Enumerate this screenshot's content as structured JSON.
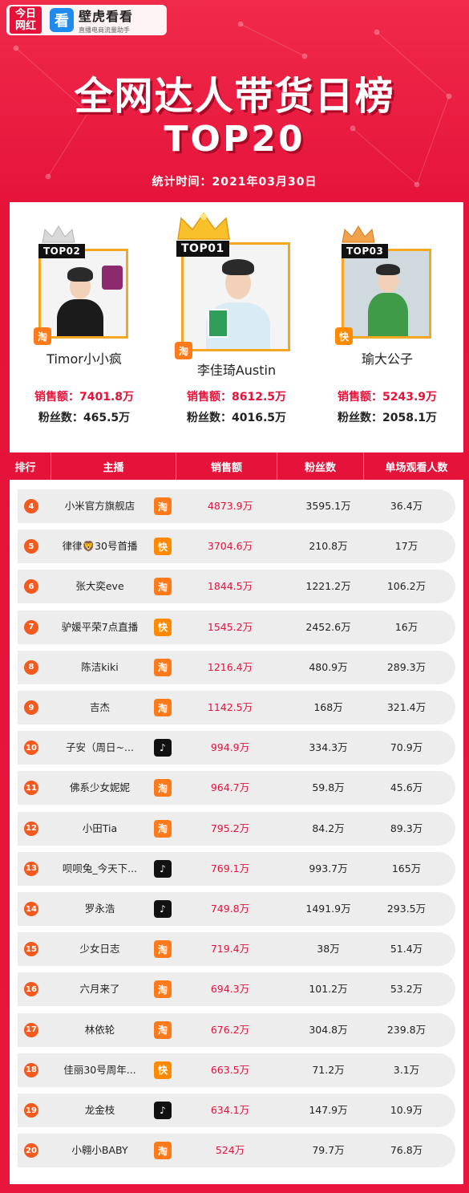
{
  "brand": {
    "logo_line1": "今日",
    "logo_line2": "网红",
    "app_icon": "看",
    "app_name": "壁虎看看",
    "app_sub": "直播电商流量助手"
  },
  "title": "全网达人带货日榜",
  "title_top": "TOP20",
  "date": "统计时间：2021年03月30日",
  "podium": [
    {
      "badge": "TOP02",
      "name": "Timor小小疯",
      "sales_label": "销售额：7401.8万",
      "fans_label": "粉丝数：465.5万",
      "platform": "淘",
      "platform_icon": "taobao-icon"
    },
    {
      "badge": "TOP01",
      "name": "李佳琦Austin",
      "sales_label": "销售额：8612.5万",
      "fans_label": "粉丝数：4016.5万",
      "platform": "淘",
      "platform_icon": "taobao-icon"
    },
    {
      "badge": "TOP03",
      "name": "瑜大公子",
      "sales_label": "销售额：5243.9万",
      "fans_label": "粉丝数：2058.1万",
      "platform": "快",
      "platform_icon": "kuaishou-icon"
    }
  ],
  "table": {
    "headers": [
      "排行",
      "主播",
      "销售额",
      "粉丝数",
      "单场观看人数"
    ]
  },
  "rows": [
    {
      "rank": "4",
      "anchor": "小米官方旗舰店",
      "platform": "taobao",
      "glyph": "淘",
      "sales": "4873.9万",
      "fans": "3595.1万",
      "views": "36.4万"
    },
    {
      "rank": "5",
      "anchor": "律律🦁30号首播",
      "platform": "kuaishou",
      "glyph": "快",
      "sales": "3704.6万",
      "fans": "210.8万",
      "views": "17万"
    },
    {
      "rank": "6",
      "anchor": "张大奕eve",
      "platform": "taobao",
      "glyph": "淘",
      "sales": "1844.5万",
      "fans": "1221.2万",
      "views": "106.2万"
    },
    {
      "rank": "7",
      "anchor": "驴媛平荣7点直播",
      "platform": "kuaishou",
      "glyph": "快",
      "sales": "1545.2万",
      "fans": "2452.6万",
      "views": "16万"
    },
    {
      "rank": "8",
      "anchor": "陈洁kiki",
      "platform": "taobao",
      "glyph": "淘",
      "sales": "1216.4万",
      "fans": "480.9万",
      "views": "289.3万"
    },
    {
      "rank": "9",
      "anchor": "吉杰",
      "platform": "taobao",
      "glyph": "淘",
      "sales": "1142.5万",
      "fans": "168万",
      "views": "321.4万"
    },
    {
      "rank": "10",
      "anchor": "子安（周日~...",
      "platform": "douyin",
      "glyph": "♪",
      "sales": "994.9万",
      "fans": "334.3万",
      "views": "70.9万"
    },
    {
      "rank": "11",
      "anchor": "佛系少女妮妮",
      "platform": "taobao",
      "glyph": "淘",
      "sales": "964.7万",
      "fans": "59.8万",
      "views": "45.6万"
    },
    {
      "rank": "12",
      "anchor": "小田Tia",
      "platform": "taobao",
      "glyph": "淘",
      "sales": "795.2万",
      "fans": "84.2万",
      "views": "89.3万"
    },
    {
      "rank": "13",
      "anchor": "呗呗兔_今天下...",
      "platform": "douyin",
      "glyph": "♪",
      "sales": "769.1万",
      "fans": "993.7万",
      "views": "165万"
    },
    {
      "rank": "14",
      "anchor": "罗永浩",
      "platform": "douyin",
      "glyph": "♪",
      "sales": "749.8万",
      "fans": "1491.9万",
      "views": "293.5万"
    },
    {
      "rank": "15",
      "anchor": "少女日志",
      "platform": "taobao",
      "glyph": "淘",
      "sales": "719.4万",
      "fans": "38万",
      "views": "51.4万"
    },
    {
      "rank": "16",
      "anchor": "六月来了",
      "platform": "taobao",
      "glyph": "淘",
      "sales": "694.3万",
      "fans": "101.2万",
      "views": "53.2万"
    },
    {
      "rank": "17",
      "anchor": "林依轮",
      "platform": "taobao",
      "glyph": "淘",
      "sales": "676.2万",
      "fans": "304.8万",
      "views": "239.8万"
    },
    {
      "rank": "18",
      "anchor": "佳丽30号周年...",
      "platform": "kuaishou",
      "glyph": "快",
      "sales": "663.5万",
      "fans": "71.2万",
      "views": "3.1万"
    },
    {
      "rank": "19",
      "anchor": "龙金枝",
      "platform": "douyin",
      "glyph": "♪",
      "sales": "634.1万",
      "fans": "147.9万",
      "views": "10.9万"
    },
    {
      "rank": "20",
      "anchor": "小翱小BABY",
      "platform": "taobao",
      "glyph": "淘",
      "sales": "524万",
      "fans": "79.7万",
      "views": "76.8万"
    }
  ],
  "colors": {
    "accent_red": "#e5123a",
    "gold": "#f5a623",
    "taobao": "#ff7a1a",
    "kuaishou": "#ff8a00",
    "douyin": "#111111"
  }
}
